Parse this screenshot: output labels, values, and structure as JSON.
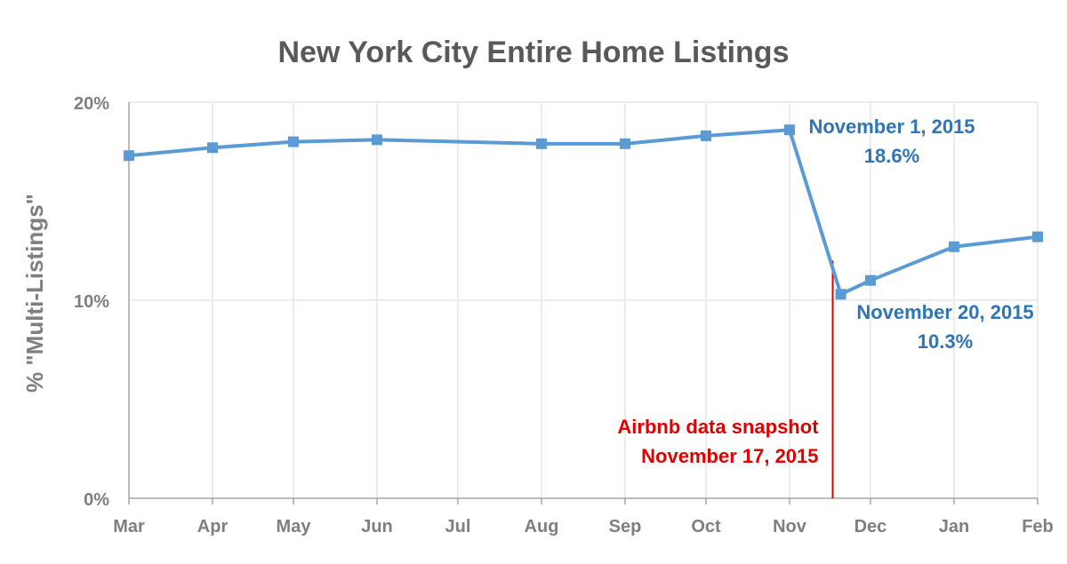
{
  "chart_data": {
    "type": "line",
    "title": "New York City Entire Home Listings",
    "xlabel": "",
    "ylabel": "% \"Multi-Listings\"",
    "ylim": [
      0,
      20
    ],
    "y_ticks": [
      0,
      10,
      20
    ],
    "y_tick_labels": [
      "0%",
      "10%",
      "20%"
    ],
    "x_tick_dates": [
      "2015-03-01",
      "2015-04-01",
      "2015-05-01",
      "2015-06-01",
      "2015-07-01",
      "2015-08-01",
      "2015-09-01",
      "2015-10-01",
      "2015-11-01",
      "2015-12-01",
      "2016-01-01",
      "2016-02-01"
    ],
    "x_tick_labels": [
      "Mar",
      "Apr",
      "May",
      "Jun",
      "Jul",
      "Aug",
      "Sep",
      "Oct",
      "Nov",
      "Dec",
      "Jan",
      "Feb"
    ],
    "grid": "vertical and horizontal, light gray",
    "series": [
      {
        "x": [
          "2015-03-01",
          "2015-04-01",
          "2015-05-01",
          "2015-06-01",
          "2015-08-01",
          "2015-09-01",
          "2015-10-01",
          "2015-11-01",
          "2015-11-20",
          "2015-12-01",
          "2016-01-01",
          "2016-02-01"
        ],
        "values": [
          17.3,
          17.7,
          18.0,
          18.1,
          17.9,
          17.9,
          18.3,
          18.6,
          10.3,
          11.0,
          12.7,
          13.2
        ],
        "color": "#5B9BD5"
      }
    ],
    "annotations": [
      {
        "lines": [
          "November 1, 2015",
          "18.6%"
        ],
        "color": "#2E75B6"
      },
      {
        "lines": [
          "November 20, 2015",
          "10.3%"
        ],
        "color": "#2E75B6"
      }
    ],
    "marker_line": {
      "x": "2015-11-17",
      "y_top": 12.0,
      "color": "#E00000",
      "lines": [
        "Airbnb data snapshot",
        "November 17, 2015"
      ]
    },
    "colors": {
      "title": "#595959",
      "tick_label": "#7F7F7F",
      "axis_label": "#7F7F7F",
      "grid": "#E6E6E6",
      "axis": "#A6A6A6"
    }
  }
}
